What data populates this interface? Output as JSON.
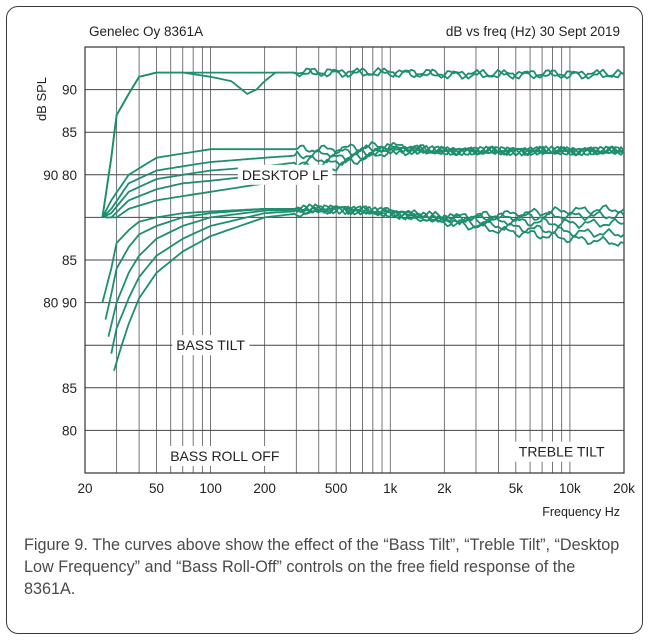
{
  "chart_data": {
    "type": "line",
    "header_left": "Genelec Oy 8361A",
    "header_right": "dB vs freq (Hz) 30 Sept 2019",
    "ylabel": "dB SPL",
    "xlabel": "Frequency Hz",
    "xscale": "log",
    "xlim": [
      20,
      20000
    ],
    "grid": true,
    "line_color": "#1e8f6e",
    "x_ticks": [
      {
        "value": 20,
        "label": "20"
      },
      {
        "value": 50,
        "label": "50"
      },
      {
        "value": 100,
        "label": "100"
      },
      {
        "value": 200,
        "label": "200"
      },
      {
        "value": 500,
        "label": "500"
      },
      {
        "value": 1000,
        "label": "1k"
      },
      {
        "value": 2000,
        "label": "2k"
      },
      {
        "value": 5000,
        "label": "5k"
      },
      {
        "value": 10000,
        "label": "10k"
      },
      {
        "value": 20000,
        "label": "20k"
      }
    ],
    "y_tick_labels": [
      {
        "row": 1,
        "text": "90"
      },
      {
        "row": 2,
        "text": "85"
      },
      {
        "row": 3,
        "text": "90 80"
      },
      {
        "row": 5,
        "text": "85"
      },
      {
        "row": 6,
        "text": "80 90"
      },
      {
        "row": 8,
        "text": "85"
      },
      {
        "row": 9,
        "text": "80"
      }
    ],
    "annotations": [
      {
        "text": "DESKTOP LF",
        "anchor_freq": 260,
        "row": 3
      },
      {
        "text": "BASS TILT",
        "anchor_freq": 100,
        "row": 7
      },
      {
        "text": "BASS ROLL OFF",
        "anchor_freq": 120,
        "row": 9.6
      },
      {
        "text": "TREBLE TILT",
        "anchor_freq": 9000,
        "row": 9.5
      }
    ],
    "series": [
      {
        "group": "desktop_lf",
        "points": [
          [
            25,
            85
          ],
          [
            28,
            92
          ],
          [
            30,
            97
          ],
          [
            35,
            99.5
          ],
          [
            40,
            101.5
          ],
          [
            50,
            102
          ],
          [
            70,
            102
          ],
          [
            100,
            101.5
          ],
          [
            130,
            101
          ],
          [
            160,
            99.5
          ],
          [
            180,
            100
          ],
          [
            200,
            101
          ],
          [
            230,
            102
          ],
          [
            300,
            102
          ],
          [
            500,
            102
          ],
          [
            700,
            102
          ],
          [
            1000,
            102
          ],
          [
            2000,
            101.8
          ],
          [
            5000,
            101.8
          ],
          [
            10000,
            101.8
          ],
          [
            20000,
            101.8
          ]
        ]
      },
      {
        "group": "desktop_lf",
        "points": [
          [
            25,
            85
          ],
          [
            28,
            92
          ],
          [
            30,
            97
          ],
          [
            35,
            99.5
          ],
          [
            40,
            101.5
          ],
          [
            50,
            102
          ],
          [
            100,
            102
          ],
          [
            200,
            102
          ],
          [
            500,
            102
          ],
          [
            1000,
            102
          ],
          [
            2000,
            101.8
          ],
          [
            5000,
            101.8
          ],
          [
            10000,
            101.8
          ],
          [
            20000,
            101.8
          ]
        ]
      },
      {
        "group": "bass_tilt",
        "points": [
          [
            25,
            85
          ],
          [
            28,
            87
          ],
          [
            35,
            90
          ],
          [
            50,
            92
          ],
          [
            70,
            92.5
          ],
          [
            100,
            93
          ],
          [
            200,
            93
          ],
          [
            500,
            93
          ],
          [
            700,
            93.3
          ],
          [
            1000,
            93.4
          ],
          [
            2000,
            92.8
          ],
          [
            5000,
            92.8
          ],
          [
            10000,
            92.8
          ],
          [
            20000,
            92.8
          ]
        ]
      },
      {
        "group": "bass_tilt",
        "points": [
          [
            25,
            85
          ],
          [
            28,
            86
          ],
          [
            35,
            89
          ],
          [
            50,
            90.5
          ],
          [
            70,
            91
          ],
          [
            100,
            91.5
          ],
          [
            200,
            92
          ],
          [
            500,
            92.6
          ],
          [
            1000,
            93.2
          ],
          [
            2000,
            92.8
          ],
          [
            5000,
            92.8
          ],
          [
            10000,
            92.8
          ],
          [
            20000,
            92.8
          ]
        ]
      },
      {
        "group": "bass_tilt",
        "points": [
          [
            25,
            85
          ],
          [
            28,
            85.5
          ],
          [
            35,
            88
          ],
          [
            50,
            89.5
          ],
          [
            70,
            90
          ],
          [
            100,
            90.5
          ],
          [
            200,
            91
          ],
          [
            500,
            92
          ],
          [
            1000,
            93
          ],
          [
            2000,
            92.8
          ],
          [
            5000,
            92.8
          ],
          [
            10000,
            92.8
          ],
          [
            20000,
            92.8
          ]
        ]
      },
      {
        "group": "bass_tilt",
        "points": [
          [
            26,
            85
          ],
          [
            28,
            85
          ],
          [
            35,
            87
          ],
          [
            50,
            88.3
          ],
          [
            70,
            89
          ],
          [
            100,
            89.3
          ],
          [
            200,
            90
          ],
          [
            500,
            91.5
          ],
          [
            1000,
            93
          ],
          [
            2000,
            92.8
          ],
          [
            5000,
            92.8
          ],
          [
            10000,
            92.8
          ],
          [
            20000,
            92.8
          ]
        ]
      },
      {
        "group": "bass_tilt",
        "points": [
          [
            26,
            85
          ],
          [
            30,
            85
          ],
          [
            35,
            86
          ],
          [
            50,
            87
          ],
          [
            70,
            87.5
          ],
          [
            100,
            88
          ],
          [
            200,
            89
          ],
          [
            500,
            91
          ],
          [
            1000,
            92.8
          ],
          [
            2000,
            92.8
          ],
          [
            5000,
            92.8
          ],
          [
            10000,
            92.8
          ],
          [
            20000,
            92.8
          ]
        ]
      },
      {
        "group": "bass_rolloff_treble_tilt",
        "points": [
          [
            25,
            75
          ],
          [
            28,
            79
          ],
          [
            30,
            82
          ],
          [
            35,
            83.5
          ],
          [
            40,
            84.5
          ],
          [
            50,
            85
          ],
          [
            70,
            85.5
          ],
          [
            100,
            85.7
          ],
          [
            200,
            86
          ],
          [
            500,
            86
          ],
          [
            1000,
            85.7
          ],
          [
            2000,
            85
          ],
          [
            4000,
            85.3
          ],
          [
            10000,
            85.8
          ],
          [
            20000,
            86
          ]
        ]
      },
      {
        "group": "bass_rolloff_treble_tilt",
        "points": [
          [
            26,
            73
          ],
          [
            28,
            76
          ],
          [
            30,
            79
          ],
          [
            35,
            81.5
          ],
          [
            40,
            83
          ],
          [
            50,
            84
          ],
          [
            70,
            85
          ],
          [
            100,
            85.5
          ],
          [
            200,
            86
          ],
          [
            500,
            86
          ],
          [
            1000,
            85.6
          ],
          [
            2000,
            85
          ],
          [
            4000,
            85
          ],
          [
            10000,
            85.2
          ],
          [
            20000,
            85.2
          ]
        ]
      },
      {
        "group": "bass_rolloff_treble_tilt",
        "points": [
          [
            27,
            71
          ],
          [
            30,
            75
          ],
          [
            35,
            78.5
          ],
          [
            40,
            80.5
          ],
          [
            50,
            82.5
          ],
          [
            70,
            84
          ],
          [
            100,
            85
          ],
          [
            200,
            85.8
          ],
          [
            500,
            86
          ],
          [
            1000,
            85.5
          ],
          [
            2000,
            84.8
          ],
          [
            4000,
            84.6
          ],
          [
            10000,
            84.3
          ],
          [
            20000,
            84.3
          ]
        ]
      },
      {
        "group": "bass_rolloff_treble_tilt",
        "points": [
          [
            28,
            69
          ],
          [
            30,
            72
          ],
          [
            35,
            75.5
          ],
          [
            40,
            78
          ],
          [
            50,
            80.5
          ],
          [
            70,
            82.5
          ],
          [
            100,
            84
          ],
          [
            200,
            85.5
          ],
          [
            500,
            86
          ],
          [
            1000,
            85.5
          ],
          [
            2000,
            84.6
          ],
          [
            4000,
            84
          ],
          [
            10000,
            83.3
          ],
          [
            20000,
            83
          ]
        ]
      },
      {
        "group": "bass_rolloff_treble_tilt",
        "points": [
          [
            29,
            67
          ],
          [
            32,
            70
          ],
          [
            35,
            72.5
          ],
          [
            40,
            75.5
          ],
          [
            50,
            78.5
          ],
          [
            70,
            81
          ],
          [
            100,
            82.8
          ],
          [
            200,
            85
          ],
          [
            500,
            86
          ],
          [
            1000,
            85.5
          ],
          [
            2000,
            84.5
          ],
          [
            4000,
            83.5
          ],
          [
            10000,
            82.5
          ],
          [
            20000,
            82
          ]
        ]
      }
    ]
  },
  "caption": "Figure 9. The curves above show the effect of the “Bass Tilt”, “Treble Tilt”, “Desktop Low Frequency” and “Bass Roll-Off” controls on the free field response of the 8361A."
}
